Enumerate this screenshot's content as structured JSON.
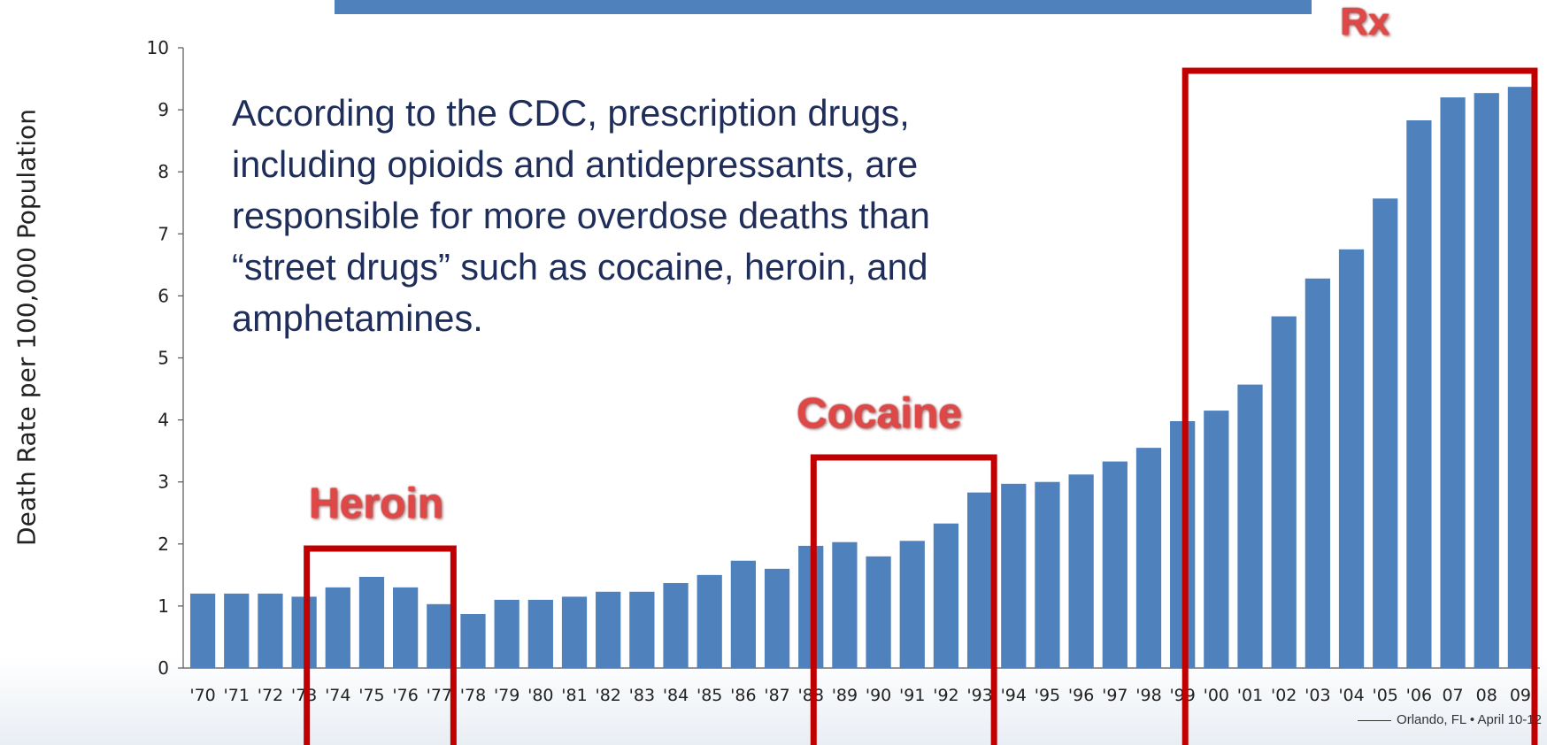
{
  "chart_data": {
    "type": "bar",
    "ylabel": "Death Rate per 100,000 Population",
    "ylim": [
      0,
      10
    ],
    "yticks": [
      "0",
      "1",
      "2",
      "3",
      "4",
      "5",
      "6",
      "7",
      "8",
      "9",
      "10"
    ],
    "categories": [
      "'70",
      "'71",
      "'72",
      "'73",
      "'74",
      "'75",
      "'76",
      "'77",
      "'78",
      "'79",
      "'80",
      "'81",
      "'82",
      "'83",
      "'84",
      "'85",
      "'86",
      "'87",
      "'88",
      "'89",
      "'90",
      "'91",
      "'92",
      "'93",
      "'94",
      "'95",
      "'96",
      "'97",
      "'98",
      "'99",
      "'00",
      "'01",
      "'02",
      "'03",
      "'04",
      "'05",
      "'06",
      "07",
      "08",
      "09"
    ],
    "values": [
      1.2,
      1.2,
      1.2,
      1.15,
      1.3,
      1.47,
      1.3,
      1.03,
      0.87,
      1.1,
      1.1,
      1.15,
      1.23,
      1.23,
      1.37,
      1.5,
      1.73,
      1.6,
      1.97,
      2.03,
      1.8,
      2.05,
      2.33,
      2.83,
      2.97,
      3.0,
      3.12,
      3.33,
      3.55,
      3.98,
      4.15,
      4.57,
      5.67,
      6.28,
      6.75,
      7.57,
      8.83,
      9.2,
      9.27,
      9.37
    ],
    "bar_color": "#4f81bd",
    "highlights": [
      {
        "label": "Heroin",
        "from": "'74",
        "to": "'77"
      },
      {
        "label": "Cocaine",
        "from": "'89",
        "to": "'93"
      },
      {
        "label": "Rx",
        "from": "'00",
        "to": "09"
      }
    ],
    "highlight_color": "#c00000",
    "annotation": "According to the CDC, prescription drugs, including opioids and antidepressants, are responsible for more overdose deaths than “street drugs” such as cocaine, heroin, and amphetamines."
  },
  "callout_lines": [
    "According to the CDC, prescription drugs,",
    "including opioids and antidepressants, are",
    "responsible for more overdose deaths than",
    "“street drugs” such as cocaine, heroin, and",
    "amphetamines."
  ],
  "labels": {
    "heroin": "Heroin",
    "cocaine": "Cocaine",
    "rx": "Rx"
  },
  "footer": "Orlando, FL • April 10-12"
}
